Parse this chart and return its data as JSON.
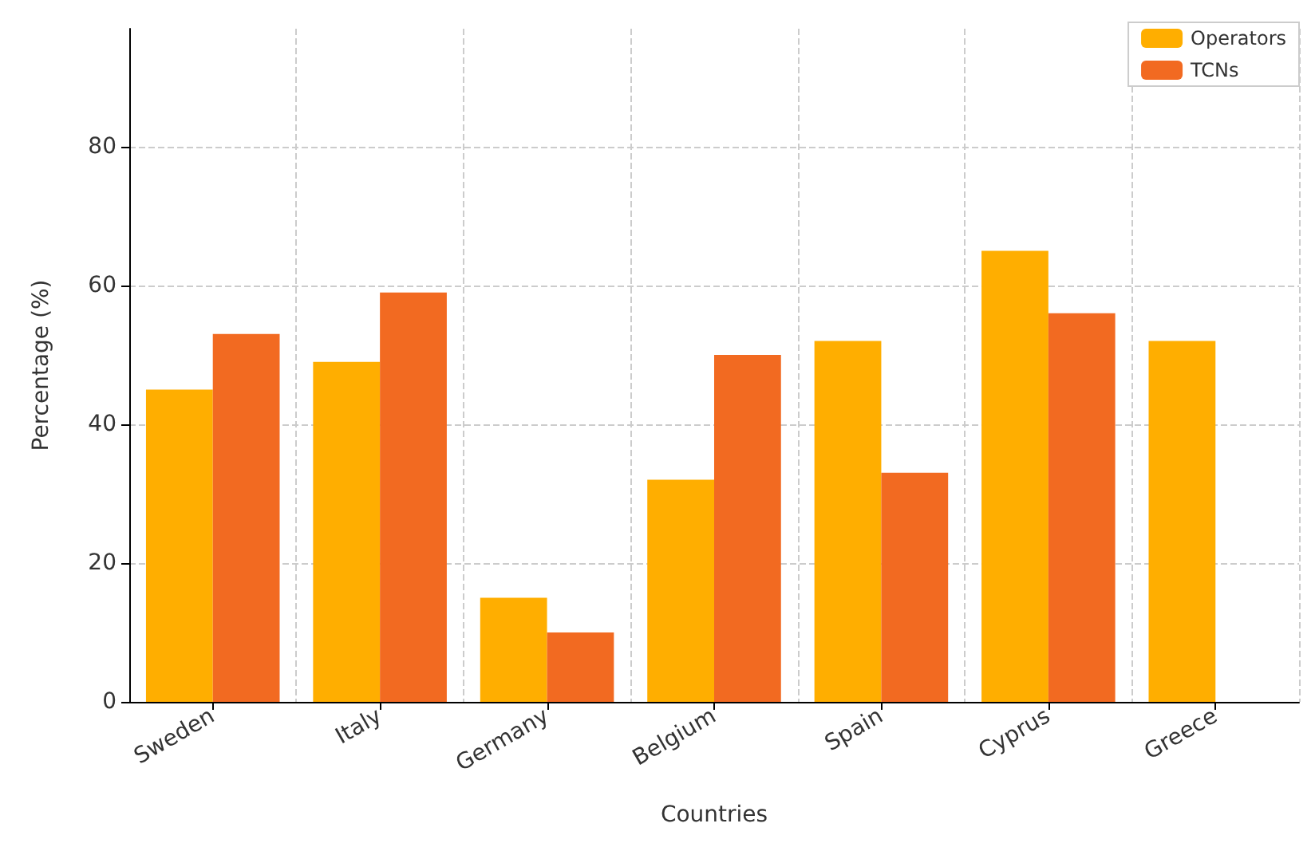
{
  "chart_data": {
    "type": "bar",
    "xlabel": "Countries",
    "ylabel": "Percentage (%)",
    "categories": [
      "Sweden",
      "Italy",
      "Germany",
      "Belgium",
      "Spain",
      "Cyprus",
      "Greece"
    ],
    "series": [
      {
        "name": "Operators",
        "color": "#ffae00",
        "values": [
          45,
          49,
          15,
          32,
          52,
          65,
          52
        ]
      },
      {
        "name": "TCNs",
        "color": "#f26a21",
        "values": [
          53,
          59,
          10,
          50,
          33,
          56,
          null
        ]
      }
    ],
    "ylim": [
      0,
      97
    ],
    "yticks": [
      0,
      20,
      40,
      60,
      80
    ],
    "grid": true,
    "legend": "top right"
  }
}
